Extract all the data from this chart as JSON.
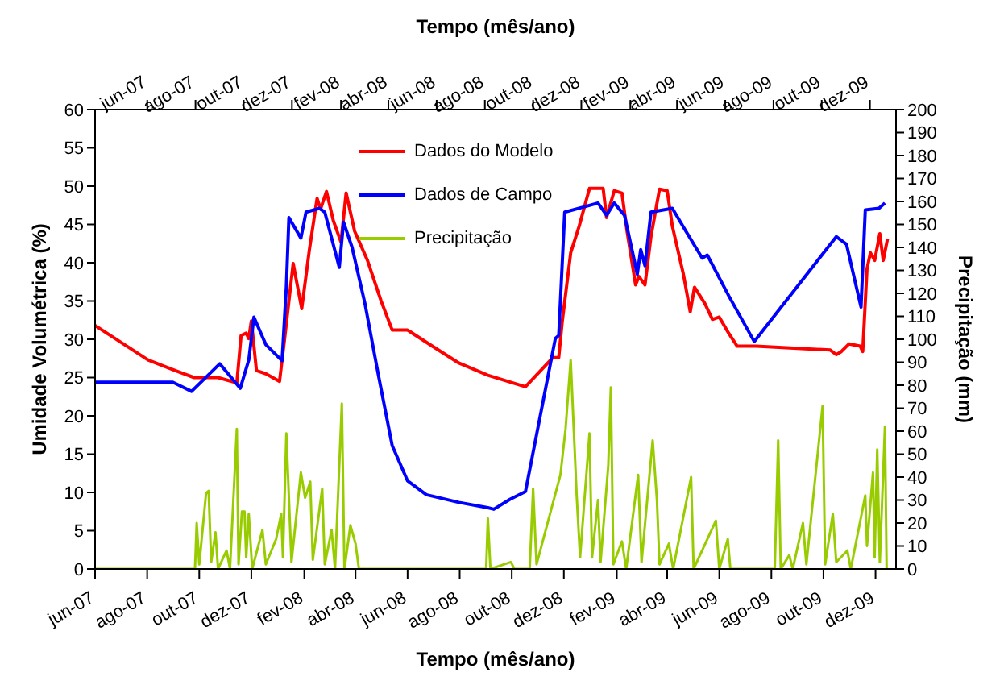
{
  "chart_data": {
    "type": "line",
    "xlabel": "Tempo (mês/ano)",
    "x2label": "Tempo (mês/ano)",
    "ylabel": "Umidade Volumétrica (%)",
    "y2label": "Precipitação (mm)",
    "xlim": [
      "2007-06-01",
      "2009-12-25"
    ],
    "xticks": [
      {
        "value": "2007-06-01",
        "label": "jun-07"
      },
      {
        "value": "2007-08-01",
        "label": "ago-07"
      },
      {
        "value": "2007-10-01",
        "label": "out-07"
      },
      {
        "value": "2007-12-01",
        "label": "dez-07"
      },
      {
        "value": "2008-02-01",
        "label": "fev-08"
      },
      {
        "value": "2008-04-01",
        "label": "abr-08"
      },
      {
        "value": "2008-06-01",
        "label": "jun-08"
      },
      {
        "value": "2008-08-01",
        "label": "ago-08"
      },
      {
        "value": "2008-10-01",
        "label": "out-08"
      },
      {
        "value": "2008-12-01",
        "label": "dez-08"
      },
      {
        "value": "2009-02-01",
        "label": "fev-09"
      },
      {
        "value": "2009-04-01",
        "label": "abr-09"
      },
      {
        "value": "2009-06-01",
        "label": "jun-09"
      },
      {
        "value": "2009-08-01",
        "label": "ago-09"
      },
      {
        "value": "2009-10-01",
        "label": "out-09"
      },
      {
        "value": "2009-12-01",
        "label": "dez-09"
      }
    ],
    "x2lim": [
      "2007-03-27",
      "2010-01-03"
    ],
    "x2ticks": [
      {
        "value": "2007-06-01",
        "label": "jun-07"
      },
      {
        "value": "2007-08-01",
        "label": "ago-07"
      },
      {
        "value": "2007-10-01",
        "label": "out-07"
      },
      {
        "value": "2007-12-01",
        "label": "dez-07"
      },
      {
        "value": "2008-02-01",
        "label": "fev-08"
      },
      {
        "value": "2008-04-01",
        "label": "abr-08"
      },
      {
        "value": "2008-06-01",
        "label": "jun-08"
      },
      {
        "value": "2008-08-01",
        "label": "ago-08"
      },
      {
        "value": "2008-10-01",
        "label": "out-08"
      },
      {
        "value": "2008-12-01",
        "label": "dez-08"
      },
      {
        "value": "2009-02-01",
        "label": "fev-09"
      },
      {
        "value": "2009-04-01",
        "label": "abr-09"
      },
      {
        "value": "2009-06-01",
        "label": "jun-09"
      },
      {
        "value": "2009-08-01",
        "label": "ago-09"
      },
      {
        "value": "2009-10-01",
        "label": "out-09"
      },
      {
        "value": "2009-12-01",
        "label": "dez-09"
      }
    ],
    "ylim": [
      0,
      60
    ],
    "yticks": [
      0,
      5,
      10,
      15,
      20,
      25,
      30,
      35,
      40,
      45,
      50,
      55,
      60
    ],
    "y2lim": [
      0,
      200
    ],
    "y2ticks": [
      0,
      10,
      20,
      30,
      40,
      50,
      60,
      70,
      80,
      90,
      100,
      110,
      120,
      130,
      140,
      150,
      160,
      170,
      180,
      190,
      200
    ],
    "grid": false,
    "legend": "top",
    "series": [
      {
        "name": "Dados do Modelo",
        "color": "#ff0000",
        "x": [
          "2007-06-01",
          "2007-08-02",
          "2007-09-03",
          "2007-09-25",
          "2007-10-23",
          "2007-11-14",
          "2007-11-19",
          "2007-11-25",
          "2007-11-28",
          "2007-12-01",
          "2007-12-07",
          "2007-12-18",
          "2008-01-03",
          "2008-01-09",
          "2008-01-19",
          "2008-01-29",
          "2008-02-07",
          "2008-02-16",
          "2008-02-20",
          "2008-02-27",
          "2008-03-06",
          "2008-03-15",
          "2008-03-21",
          "2008-03-31",
          "2008-04-15",
          "2008-05-01",
          "2008-05-14",
          "2008-06-01",
          "2008-06-30",
          "2008-07-31",
          "2008-09-03",
          "2008-10-17",
          "2008-11-18",
          "2008-11-25",
          "2008-11-29",
          "2008-12-09",
          "2008-12-19",
          "2008-12-31",
          "2009-01-16",
          "2009-01-20",
          "2009-01-29",
          "2009-02-07",
          "2009-02-13",
          "2009-02-23",
          "2009-02-27",
          "2009-03-06",
          "2009-03-13",
          "2009-03-23",
          "2009-04-01",
          "2009-04-07",
          "2009-04-20",
          "2009-04-28",
          "2009-05-03",
          "2009-05-15",
          "2009-05-24",
          "2009-06-01",
          "2009-06-12",
          "2009-06-22",
          "2009-07-14",
          "2009-10-09",
          "2009-10-16",
          "2009-10-22",
          "2009-10-31",
          "2009-11-13",
          "2009-11-16",
          "2009-11-21",
          "2009-11-25",
          "2009-11-30",
          "2009-12-06",
          "2009-12-10",
          "2009-12-15"
        ],
        "values": [
          31.8,
          27.3,
          25.9,
          25.0,
          25.0,
          24.3,
          30.5,
          30.8,
          30.1,
          32.4,
          25.9,
          25.5,
          24.5,
          30.1,
          39.9,
          34.0,
          41.7,
          48.4,
          47.0,
          49.3,
          45.5,
          42.7,
          49.1,
          44.1,
          40.3,
          35.0,
          31.2,
          31.2,
          29.1,
          26.9,
          25.3,
          23.8,
          27.6,
          27.6,
          32.2,
          41.3,
          44.8,
          49.7,
          49.7,
          45.9,
          49.4,
          49.1,
          44.1,
          37.1,
          38.2,
          37.1,
          43.4,
          49.6,
          49.4,
          44.8,
          38.5,
          33.6,
          36.8,
          34.7,
          32.6,
          32.9,
          30.8,
          29.1,
          29.1,
          28.6,
          28.0,
          28.4,
          29.4,
          29.1,
          28.4,
          39.2,
          41.3,
          40.3,
          43.8,
          40.3,
          43.1
        ]
      },
      {
        "name": "Dados de Campo",
        "color": "#0000ff",
        "x": [
          "2007-06-01",
          "2007-08-31",
          "2007-09-22",
          "2007-10-25",
          "2007-11-18",
          "2007-11-28",
          "2007-12-04",
          "2007-12-18",
          "2008-01-06",
          "2008-01-11",
          "2008-01-14",
          "2008-01-28",
          "2008-02-03",
          "2008-02-19",
          "2008-02-25",
          "2008-03-13",
          "2008-03-18",
          "2008-03-28",
          "2008-04-12",
          "2008-04-28",
          "2008-05-14",
          "2008-06-01",
          "2008-06-23",
          "2008-07-31",
          "2008-09-03",
          "2008-09-10",
          "2008-09-29",
          "2008-10-17",
          "2008-11-21",
          "2008-11-25",
          "2008-12-02",
          "2008-12-25",
          "2009-01-10",
          "2009-01-20",
          "2009-01-29",
          "2009-02-10",
          "2009-02-25",
          "2009-03-01",
          "2009-03-06",
          "2009-03-13",
          "2009-04-07",
          "2009-04-23",
          "2009-05-12",
          "2009-05-18",
          "2009-06-12",
          "2009-07-12",
          "2009-10-16",
          "2009-10-28",
          "2009-11-14",
          "2009-11-19",
          "2009-12-05",
          "2009-12-12"
        ],
        "values": [
          24.4,
          24.4,
          23.2,
          26.8,
          23.6,
          27.3,
          32.9,
          29.3,
          27.2,
          36.9,
          45.9,
          43.2,
          46.6,
          47.1,
          46.6,
          39.4,
          45.3,
          42.0,
          34.7,
          25.2,
          16.1,
          11.5,
          9.7,
          8.7,
          8.0,
          7.8,
          9.1,
          10.1,
          30.1,
          30.5,
          46.6,
          47.3,
          47.8,
          46.2,
          47.8,
          46.2,
          38.5,
          41.7,
          39.6,
          46.6,
          47.1,
          44.1,
          40.6,
          41.0,
          35.7,
          29.7,
          43.4,
          42.4,
          34.2,
          46.9,
          47.1,
          47.8
        ]
      },
      {
        "name": "Precipitação",
        "color": "#99cc00",
        "axis": "y2",
        "x": [
          "2007-06-01",
          "2007-09-26",
          "2007-09-28",
          "2007-10-01",
          "2007-10-09",
          "2007-10-12",
          "2007-10-15",
          "2007-10-20",
          "2007-10-23",
          "2007-11-02",
          "2007-11-06",
          "2007-11-14",
          "2007-11-16",
          "2007-11-20",
          "2007-11-23",
          "2007-11-25",
          "2007-11-28",
          "2007-12-02",
          "2007-12-14",
          "2007-12-18",
          "2007-12-30",
          "2008-01-05",
          "2008-01-07",
          "2008-01-11",
          "2008-01-14",
          "2008-01-17",
          "2008-01-28",
          "2008-02-02",
          "2008-02-08",
          "2008-02-11",
          "2008-02-22",
          "2008-02-25",
          "2008-03-04",
          "2008-03-08",
          "2008-03-16",
          "2008-03-19",
          "2008-03-26",
          "2008-04-01",
          "2008-04-05",
          "2008-09-01",
          "2008-09-03",
          "2008-09-06",
          "2008-09-30",
          "2008-10-04",
          "2008-10-22",
          "2008-10-26",
          "2008-10-30",
          "2008-11-27",
          "2008-12-03",
          "2008-12-09",
          "2008-12-16",
          "2008-12-20",
          "2008-12-31",
          "2009-01-03",
          "2009-01-10",
          "2009-01-13",
          "2009-01-22",
          "2009-01-25",
          "2009-01-28",
          "2009-02-07",
          "2009-02-12",
          "2009-02-26",
          "2009-03-02",
          "2009-03-15",
          "2009-03-20",
          "2009-03-23",
          "2009-04-03",
          "2009-04-08",
          "2009-04-29",
          "2009-05-02",
          "2009-05-28",
          "2009-06-01",
          "2009-06-11",
          "2009-06-14",
          "2009-08-05",
          "2009-08-09",
          "2009-08-12",
          "2009-08-22",
          "2009-08-26",
          "2009-09-07",
          "2009-09-11",
          "2009-09-30",
          "2009-10-03",
          "2009-10-12",
          "2009-10-16",
          "2009-10-29",
          "2009-11-02",
          "2009-11-19",
          "2009-11-21",
          "2009-11-28",
          "2009-11-30",
          "2009-12-03",
          "2009-12-06",
          "2009-12-12",
          "2009-12-14"
        ],
        "values": [
          0,
          0,
          20,
          2,
          33,
          34,
          3,
          16,
          0,
          8,
          0,
          61,
          2,
          25,
          25,
          5,
          24,
          0,
          17,
          2,
          13,
          24,
          5,
          59,
          31,
          3,
          42,
          31,
          38,
          4,
          35,
          2,
          17,
          0,
          72,
          0,
          19,
          11,
          0,
          0,
          22,
          0,
          3,
          0,
          0,
          35,
          2,
          41,
          61,
          91,
          32,
          5,
          59,
          5,
          30,
          3,
          45,
          79,
          2,
          12,
          0,
          41,
          3,
          56,
          30,
          2,
          11,
          0,
          40,
          0,
          21,
          0,
          13,
          0,
          0,
          56,
          0,
          6,
          0,
          20,
          2,
          71,
          2,
          24,
          3,
          8,
          0,
          32,
          10,
          42,
          5,
          52,
          3,
          62,
          0
        ]
      }
    ]
  }
}
